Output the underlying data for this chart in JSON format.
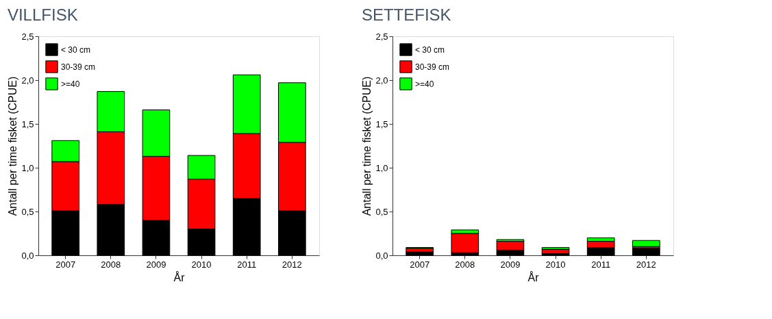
{
  "chart_data": [
    {
      "type": "bar",
      "title": "VILLFISK",
      "xlabel": "År",
      "ylabel": "Antall per time fisket (CPUE)",
      "stacked": true,
      "grid": false,
      "legend": "top left",
      "categories": [
        "2007",
        "2008",
        "2009",
        "2010",
        "2011",
        "2012"
      ],
      "ylim": [
        0,
        2.5
      ],
      "yticks": [
        {
          "value": 0,
          "label": "0,0"
        },
        {
          "value": 0.5,
          "label": "0,5"
        },
        {
          "value": 1,
          "label": "1,0"
        },
        {
          "value": 1.5,
          "label": "1,5"
        },
        {
          "value": 2,
          "label": "2,0"
        },
        {
          "value": 2.5,
          "label": "2,5"
        }
      ],
      "series": [
        {
          "name": "< 30 cm",
          "color": "#000000",
          "values": [
            0.51,
            0.58,
            0.4,
            0.3,
            0.65,
            0.51
          ]
        },
        {
          "name": "30-39 cm",
          "color": "#ff0000",
          "values": [
            0.56,
            0.83,
            0.73,
            0.57,
            0.74,
            0.78
          ]
        },
        {
          "name": ">=40",
          "color": "#00ff00",
          "values": [
            0.24,
            0.46,
            0.53,
            0.27,
            0.67,
            0.68
          ]
        }
      ]
    },
    {
      "type": "bar",
      "title": "SETTEFISK",
      "xlabel": "År",
      "ylabel": "Antall per time fisket (CPUE)",
      "stacked": true,
      "grid": false,
      "legend": "top left",
      "categories": [
        "2007",
        "2008",
        "2009",
        "2010",
        "2011",
        "2012"
      ],
      "ylim": [
        0,
        2.5
      ],
      "yticks": [
        {
          "value": 0,
          "label": "0,0"
        },
        {
          "value": 0.5,
          "label": "0,5"
        },
        {
          "value": 1,
          "label": "1,0"
        },
        {
          "value": 1.5,
          "label": "1,5"
        },
        {
          "value": 2,
          "label": "2,0"
        },
        {
          "value": 2.5,
          "label": "2,5"
        }
      ],
      "series": [
        {
          "name": "< 30 cm",
          "color": "#000000",
          "values": [
            0.04,
            0.03,
            0.06,
            0.02,
            0.09,
            0.08
          ]
        },
        {
          "name": "30-39 cm",
          "color": "#ff0000",
          "values": [
            0.04,
            0.22,
            0.1,
            0.05,
            0.07,
            0.02
          ]
        },
        {
          "name": ">=40",
          "color": "#00ff00",
          "values": [
            0.01,
            0.04,
            0.02,
            0.02,
            0.04,
            0.07
          ]
        }
      ]
    }
  ]
}
